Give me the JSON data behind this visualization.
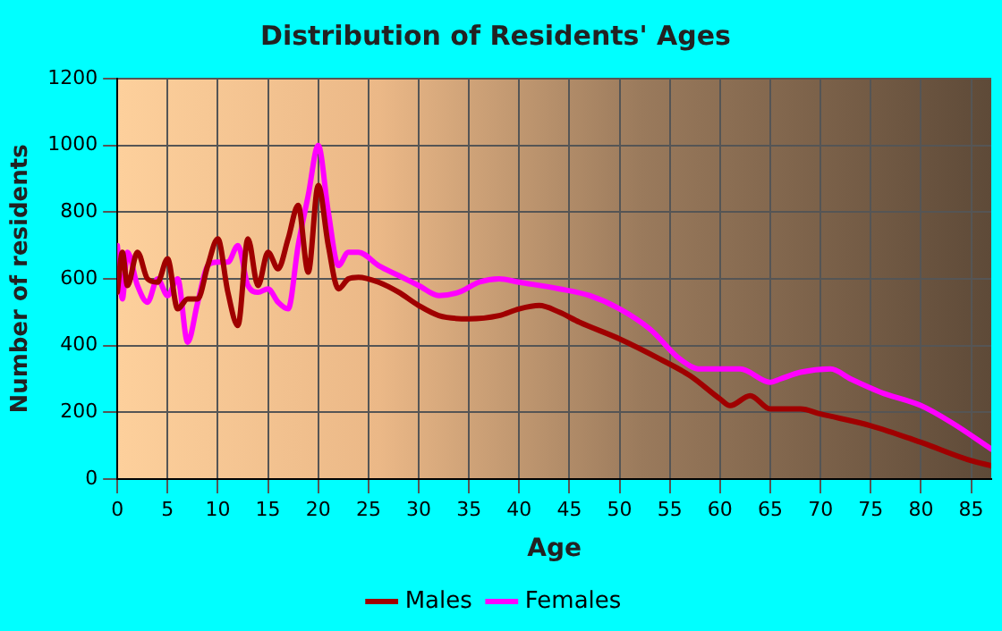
{
  "chart_data": {
    "type": "line",
    "title": "Distribution of Residents' Ages",
    "xlabel": "Age",
    "ylabel": "Number of residents",
    "xlim": [
      0,
      87
    ],
    "xticks": [
      0,
      5,
      10,
      15,
      20,
      25,
      30,
      35,
      40,
      45,
      50,
      55,
      60,
      65,
      70,
      75,
      80,
      85
    ],
    "ylim": [
      0,
      1200
    ],
    "yticks": [
      0,
      200,
      400,
      600,
      800,
      1000,
      1200
    ],
    "grid": true,
    "legend": "bottom",
    "marker": "none",
    "line_style": "solid",
    "series": [
      {
        "name": "Males",
        "color": "#a00000",
        "x": [
          0,
          0.5,
          1,
          2,
          3,
          4,
          5,
          6,
          7,
          8,
          9,
          10,
          11,
          12,
          13,
          14,
          15,
          16,
          17,
          18,
          19,
          20,
          21,
          22,
          23,
          24,
          26,
          28,
          30,
          32,
          35,
          38,
          40,
          42,
          44,
          46,
          50,
          54,
          57,
          60,
          61,
          63,
          65,
          68,
          70,
          75,
          80,
          85,
          87
        ],
        "values": [
          560,
          680,
          580,
          680,
          600,
          590,
          660,
          510,
          540,
          540,
          640,
          720,
          560,
          460,
          720,
          580,
          680,
          630,
          720,
          820,
          620,
          880,
          700,
          570,
          600,
          605,
          590,
          560,
          520,
          490,
          480,
          490,
          510,
          520,
          500,
          470,
          420,
          360,
          310,
          240,
          220,
          250,
          210,
          210,
          195,
          160,
          110,
          55,
          40
        ]
      },
      {
        "name": "Females",
        "color": "#ff00ff",
        "x": [
          0,
          0.5,
          1,
          2,
          3,
          4,
          5,
          6,
          7,
          8,
          9,
          10,
          11,
          12,
          13,
          14,
          15,
          16,
          17,
          18,
          19,
          20,
          21,
          22,
          23,
          24,
          26,
          28,
          30,
          32,
          34,
          36,
          38,
          40,
          44,
          47,
          50,
          53,
          56,
          58,
          62,
          65,
          66,
          68,
          71,
          73,
          76,
          80,
          83,
          87
        ],
        "values": [
          700,
          540,
          680,
          580,
          530,
          600,
          550,
          600,
          410,
          530,
          640,
          650,
          650,
          700,
          580,
          560,
          570,
          530,
          510,
          700,
          850,
          1000,
          800,
          640,
          680,
          680,
          640,
          610,
          580,
          550,
          560,
          590,
          600,
          590,
          570,
          550,
          510,
          450,
          360,
          330,
          330,
          290,
          300,
          320,
          330,
          300,
          260,
          220,
          170,
          90
        ]
      }
    ]
  }
}
